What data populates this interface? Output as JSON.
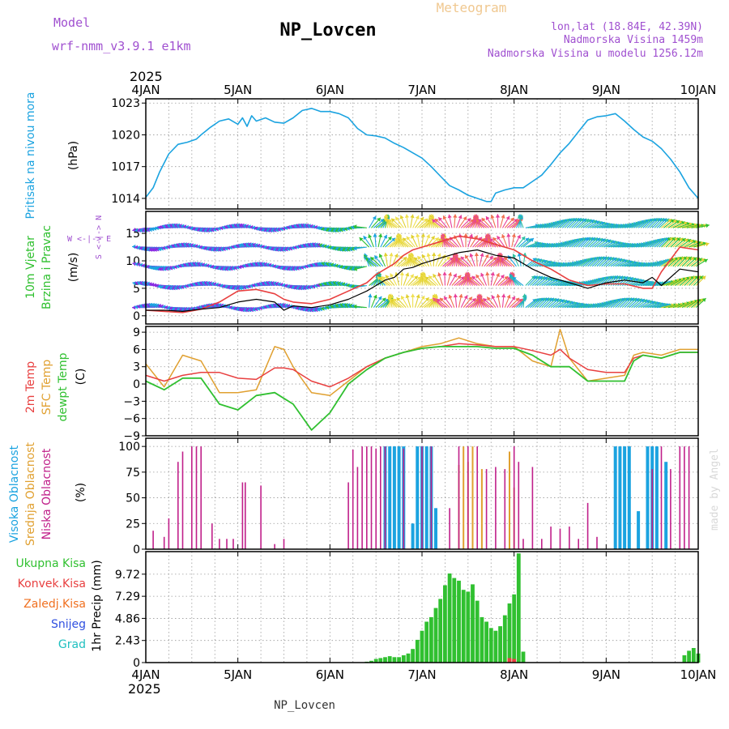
{
  "header": {
    "title": "NP_Lovcen",
    "subtitle": "Meteogram",
    "model_label": "Model",
    "model_name": "wrf-nmm_v3.9.1 e1km",
    "lonlat": "lon,lat (18.84E, 42.39N)",
    "elevation": "Nadmorska Visina 1459m",
    "model_elevation": "Nadmorska Visina u modelu 1256.12m",
    "footer": "NP_Lovcen",
    "watermark": "made by Angel"
  },
  "time_axis": {
    "year": "2025",
    "labels": [
      "4JAN",
      "5JAN",
      "6JAN",
      "7JAN",
      "8JAN",
      "9JAN",
      "10JAN"
    ]
  },
  "colors": {
    "pressure": "#1ba3e0",
    "t2m": "#e84040",
    "sfc": "#e0a030",
    "dewpt": "#30c030",
    "precip_total": "#30c030",
    "precip_conv": "#e84040",
    "freezing": "#f07020",
    "snow": "#3050e0",
    "hail": "#20c0c0",
    "cloud_high": "#1ba3e0",
    "cloud_mid": "#e0a030",
    "cloud_low": "#c0208a",
    "wind_speed": "#000000",
    "wind_gust": "#e84040"
  },
  "chart_data": [
    {
      "type": "line",
      "name": "pressure",
      "ylabel_main": "Pritisak na nivou mora",
      "ylabel_unit": "(hPa)",
      "ylim": [
        1013,
        1023.4
      ],
      "yticks": [
        1014,
        1017,
        1020,
        1023
      ],
      "x_days": [
        0,
        0.08,
        0.15,
        0.25,
        0.35,
        0.45,
        0.55,
        0.6,
        0.7,
        0.8,
        0.9,
        1.0,
        1.05,
        1.1,
        1.15,
        1.2,
        1.3,
        1.4,
        1.5,
        1.6,
        1.7,
        1.8,
        1.9,
        2.0,
        2.1,
        2.2,
        2.3,
        2.4,
        2.5,
        2.6,
        2.7,
        2.8,
        2.9,
        3.0,
        3.1,
        3.2,
        3.3,
        3.4,
        3.5,
        3.6,
        3.7,
        3.75,
        3.8,
        3.9,
        4.0,
        4.1,
        4.2,
        4.3,
        4.4,
        4.5,
        4.6,
        4.7,
        4.8,
        4.9,
        5.0,
        5.1,
        5.2,
        5.3,
        5.4,
        5.5,
        5.6,
        5.7,
        5.8,
        5.9,
        6.0
      ],
      "values": [
        1014.1,
        1015.0,
        1016.5,
        1018.2,
        1019.1,
        1019.3,
        1019.6,
        1020.0,
        1020.7,
        1021.3,
        1021.5,
        1021.0,
        1021.6,
        1020.8,
        1021.8,
        1021.3,
        1021.6,
        1021.2,
        1021.1,
        1021.6,
        1022.3,
        1022.5,
        1022.2,
        1022.2,
        1022.0,
        1021.6,
        1020.6,
        1020.0,
        1019.9,
        1019.7,
        1019.2,
        1018.8,
        1018.3,
        1017.8,
        1017.0,
        1016.1,
        1015.2,
        1014.8,
        1014.3,
        1014.0,
        1013.7,
        1013.7,
        1014.5,
        1014.8,
        1015.0,
        1015.0,
        1015.6,
        1016.2,
        1017.2,
        1018.3,
        1019.2,
        1020.3,
        1021.4,
        1021.7,
        1021.8,
        1022.0,
        1021.3,
        1020.5,
        1019.8,
        1019.4,
        1018.7,
        1017.7,
        1016.5,
        1015.0,
        1014.0
      ]
    },
    {
      "type": "line",
      "name": "wind",
      "ylabel_main": "10m Vjetar",
      "ylabel_sub": "Brzina i Pravac",
      "ylabel_unit": "(m/s)",
      "compass": "W <-|-> E",
      "compass_v": "S <-|-> N",
      "ylim": [
        -1.5,
        19
      ],
      "yticks": [
        0,
        5,
        10,
        15
      ],
      "barb_rows": [
        1.5,
        5.5,
        9,
        12.5,
        16
      ],
      "x_days": [
        0,
        0.2,
        0.4,
        0.6,
        0.8,
        1.0,
        1.2,
        1.4,
        1.5,
        1.6,
        1.8,
        2.0,
        2.2,
        2.4,
        2.5,
        2.6,
        2.7,
        2.8,
        2.9,
        3.0,
        3.2,
        3.4,
        3.6,
        3.8,
        4.0,
        4.2,
        4.4,
        4.6,
        4.8,
        5.0,
        5.2,
        5.4,
        5.5,
        5.6,
        5.8,
        6.0
      ],
      "speed": [
        1.0,
        1.0,
        0.8,
        1.2,
        1.5,
        2.5,
        3.0,
        2.5,
        1.0,
        1.8,
        1.5,
        2.0,
        3.0,
        4.5,
        5.5,
        6.5,
        7.0,
        8.5,
        8.8,
        9.5,
        10.5,
        11.5,
        12.0,
        11.0,
        10.5,
        8.5,
        7.0,
        6.0,
        5.0,
        6.0,
        6.5,
        6.0,
        7.0,
        5.5,
        8.5,
        8.0
      ],
      "gust": [
        1.0,
        0.8,
        0.6,
        1.2,
        2.5,
        4.5,
        4.8,
        4.0,
        3.0,
        2.5,
        2.2,
        3.0,
        4.5,
        6.0,
        7.5,
        8.5,
        9.5,
        11.0,
        12.0,
        12.5,
        13.5,
        14.5,
        14.0,
        13.0,
        12.0,
        10.0,
        8.5,
        6.5,
        5.5,
        5.8,
        5.8,
        5.0,
        5.0,
        8.0,
        12.5,
        12.0
      ]
    },
    {
      "type": "line",
      "name": "temperature",
      "ylabel_lines": [
        "2m Temp",
        "SFC Temp",
        "dewpt Temp"
      ],
      "ylabel_unit": "(C)",
      "ylim": [
        -9,
        10
      ],
      "yticks": [
        -9,
        -6,
        -3,
        0,
        3,
        6,
        9
      ],
      "x_days": [
        0,
        0.2,
        0.4,
        0.6,
        0.8,
        1.0,
        1.2,
        1.4,
        1.5,
        1.6,
        1.8,
        2.0,
        2.2,
        2.4,
        2.6,
        2.8,
        3.0,
        3.2,
        3.4,
        3.6,
        3.8,
        4.0,
        4.2,
        4.4,
        4.5,
        4.6,
        4.8,
        5.0,
        5.2,
        5.3,
        5.4,
        5.6,
        5.8,
        6.0
      ],
      "t2m": [
        1.5,
        0.5,
        1.5,
        2.0,
        2.0,
        1.0,
        0.8,
        2.8,
        2.8,
        2.5,
        0.5,
        -0.5,
        1.0,
        3.0,
        4.5,
        5.5,
        6.2,
        6.5,
        7.0,
        6.8,
        6.5,
        6.5,
        5.8,
        5.0,
        6.0,
        4.5,
        2.5,
        2.0,
        2.0,
        4.5,
        5.0,
        4.5,
        5.5,
        5.5
      ],
      "sfc": [
        3.5,
        -0.5,
        5.0,
        4.0,
        -1.5,
        -1.5,
        -1.0,
        6.5,
        6.0,
        3.0,
        -1.5,
        -2.0,
        0.5,
        3.0,
        4.5,
        5.5,
        6.5,
        7.0,
        8.0,
        7.0,
        6.5,
        6.5,
        4.0,
        3.0,
        9.5,
        4.5,
        0.5,
        1.0,
        1.5,
        5.0,
        5.5,
        5.0,
        6.0,
        6.0
      ],
      "dewpt": [
        0.5,
        -1.0,
        1.0,
        1.0,
        -3.5,
        -4.5,
        -2.0,
        -1.5,
        -2.5,
        -3.5,
        -8.0,
        -5.0,
        0.0,
        2.5,
        4.5,
        5.5,
        6.2,
        6.5,
        6.5,
        6.5,
        6.2,
        6.2,
        5.0,
        3.0,
        3.0,
        3.0,
        0.5,
        0.5,
        0.5,
        4.0,
        5.0,
        4.5,
        5.5,
        5.5
      ]
    },
    {
      "type": "bar",
      "name": "clouds",
      "ylabel_lines": [
        "Visoka Oblacnost",
        "Srednja Oblacnost",
        "Niska Oblacnost"
      ],
      "ylabel_unit": "(%)",
      "ylim": [
        0,
        100
      ],
      "yticks": [
        0,
        25,
        50,
        75,
        100
      ],
      "low": [
        [
          0.08,
          18
        ],
        [
          0.2,
          12
        ],
        [
          0.25,
          30
        ],
        [
          0.35,
          85
        ],
        [
          0.4,
          95
        ],
        [
          0.5,
          100
        ],
        [
          0.55,
          100
        ],
        [
          0.6,
          100
        ],
        [
          0.72,
          25
        ],
        [
          0.8,
          10
        ],
        [
          0.88,
          10
        ],
        [
          0.95,
          10
        ],
        [
          1.05,
          65
        ],
        [
          1.08,
          65
        ],
        [
          1.12,
          0
        ],
        [
          1.25,
          62
        ],
        [
          1.4,
          5
        ],
        [
          1.5,
          10
        ],
        [
          2.2,
          65
        ],
        [
          2.25,
          97
        ],
        [
          2.3,
          80
        ],
        [
          2.35,
          100
        ],
        [
          2.4,
          100
        ],
        [
          2.45,
          100
        ],
        [
          2.5,
          98
        ],
        [
          2.55,
          100
        ],
        [
          2.6,
          100
        ],
        [
          2.8,
          98
        ],
        [
          3.0,
          100
        ],
        [
          3.1,
          100
        ],
        [
          3.3,
          40
        ],
        [
          3.4,
          100
        ],
        [
          3.5,
          100
        ],
        [
          3.6,
          100
        ],
        [
          3.7,
          78
        ],
        [
          3.8,
          80
        ],
        [
          3.9,
          78
        ],
        [
          4.0,
          100
        ],
        [
          4.05,
          85
        ],
        [
          4.1,
          10
        ],
        [
          4.2,
          80
        ],
        [
          4.3,
          10
        ],
        [
          4.4,
          22
        ],
        [
          4.5,
          20
        ],
        [
          4.6,
          22
        ],
        [
          4.7,
          10
        ],
        [
          4.8,
          45
        ],
        [
          4.9,
          12
        ],
        [
          5.5,
          78
        ],
        [
          5.6,
          100
        ],
        [
          5.7,
          78
        ],
        [
          5.8,
          100
        ],
        [
          5.85,
          100
        ],
        [
          5.9,
          100
        ]
      ],
      "mid": [
        [
          3.4,
          82
        ],
        [
          3.45,
          100
        ],
        [
          3.5,
          85
        ],
        [
          3.55,
          100
        ],
        [
          3.65,
          78
        ],
        [
          3.95,
          95
        ],
        [
          4.0,
          60
        ]
      ],
      "high": [
        [
          2.6,
          100
        ],
        [
          2.65,
          100
        ],
        [
          2.7,
          100
        ],
        [
          2.75,
          100
        ],
        [
          2.8,
          100
        ],
        [
          2.9,
          25
        ],
        [
          2.95,
          100
        ],
        [
          3.0,
          100
        ],
        [
          3.05,
          100
        ],
        [
          3.1,
          100
        ],
        [
          3.15,
          40
        ],
        [
          5.1,
          100
        ],
        [
          5.15,
          100
        ],
        [
          5.2,
          100
        ],
        [
          5.25,
          100
        ],
        [
          5.35,
          37
        ],
        [
          5.45,
          100
        ],
        [
          5.5,
          100
        ],
        [
          5.55,
          100
        ],
        [
          5.65,
          85
        ]
      ]
    },
    {
      "type": "bar",
      "name": "precipitation",
      "ylabel_main": "1hr Precip (mm)",
      "legend": [
        "Ukupna Kisa",
        "Konvek.Kisa",
        "Zaledj.Kisa",
        "Snijeg",
        "Grad"
      ],
      "ylim": [
        0,
        12.2
      ],
      "yticks": [
        0,
        2.43,
        4.86,
        7.29,
        9.72
      ],
      "ytick_labels": [
        "0",
        "2.43",
        "4.86",
        "7.29",
        "9.72"
      ],
      "x_days": [
        2.4,
        2.45,
        2.5,
        2.55,
        2.6,
        2.65,
        2.7,
        2.75,
        2.8,
        2.85,
        2.9,
        2.95,
        3.0,
        3.05,
        3.1,
        3.15,
        3.2,
        3.25,
        3.3,
        3.35,
        3.4,
        3.45,
        3.5,
        3.55,
        3.6,
        3.65,
        3.7,
        3.75,
        3.8,
        3.85,
        3.9,
        3.95,
        4.0,
        4.05,
        4.1,
        5.85,
        5.9,
        5.95,
        6.0
      ],
      "values": [
        0.1,
        0.2,
        0.4,
        0.5,
        0.6,
        0.7,
        0.6,
        0.6,
        0.8,
        1.0,
        1.5,
        2.5,
        3.5,
        4.5,
        5.0,
        6.0,
        7.0,
        8.5,
        9.8,
        9.3,
        9.0,
        8.0,
        7.8,
        8.6,
        6.8,
        5.0,
        4.5,
        3.8,
        3.5,
        4.0,
        5.2,
        6.5,
        7.5,
        12.0,
        1.2,
        0.8,
        1.3,
        1.6,
        1.0
      ],
      "conv": [
        [
          3.95,
          0.5
        ],
        [
          4.0,
          0.4
        ]
      ]
    }
  ]
}
